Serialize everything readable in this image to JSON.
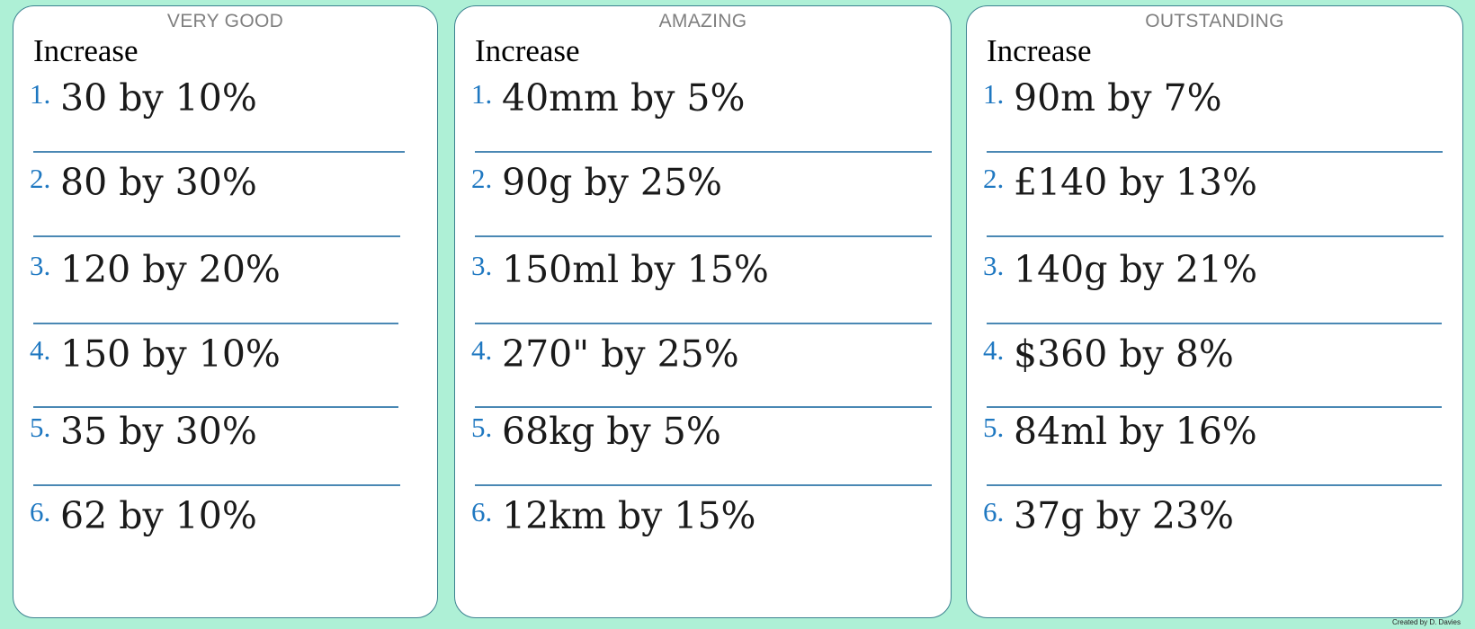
{
  "cards": [
    {
      "heading": "VERY GOOD",
      "title": "Increase",
      "questions": [
        {
          "num": "1.",
          "text": "30 by 10%"
        },
        {
          "num": "2.",
          "text": "80 by 30%"
        },
        {
          "num": "3.",
          "text": "120 by 20%"
        },
        {
          "num": "4.",
          "text": "150 by 10%"
        },
        {
          "num": "5.",
          "text": "35 by 30%"
        },
        {
          "num": "6.",
          "text": "62 by 10%"
        }
      ]
    },
    {
      "heading": "AMAZING",
      "title": "Increase",
      "questions": [
        {
          "num": "1.",
          "text": "40mm by 5%"
        },
        {
          "num": "2.",
          "text": "90g by 25%"
        },
        {
          "num": "3.",
          "text": "150ml by 15%"
        },
        {
          "num": "4.",
          "text": "270\" by 25%"
        },
        {
          "num": "5.",
          "text": "68kg by 5%"
        },
        {
          "num": "6.",
          "text": "12km by 15%"
        }
      ]
    },
    {
      "heading": "OUTSTANDING",
      "title": "Increase",
      "questions": [
        {
          "num": "1.",
          "text": "90m by 7%"
        },
        {
          "num": "2.",
          "text": "£140 by 13%"
        },
        {
          "num": "3.",
          "text": "140g by 21%"
        },
        {
          "num": "4.",
          "text": "$360 by 8%"
        },
        {
          "num": "5.",
          "text": "84ml by 16%"
        },
        {
          "num": "6.",
          "text": "37g by 23%"
        }
      ]
    }
  ],
  "footer": {
    "credit": "Created by D. Davies"
  },
  "colors": {
    "background": "#aef0d6",
    "card_border": "#3c8290",
    "heading": "#7f7f7f",
    "number": "#1f78c1",
    "rule": "#4a88b4"
  }
}
